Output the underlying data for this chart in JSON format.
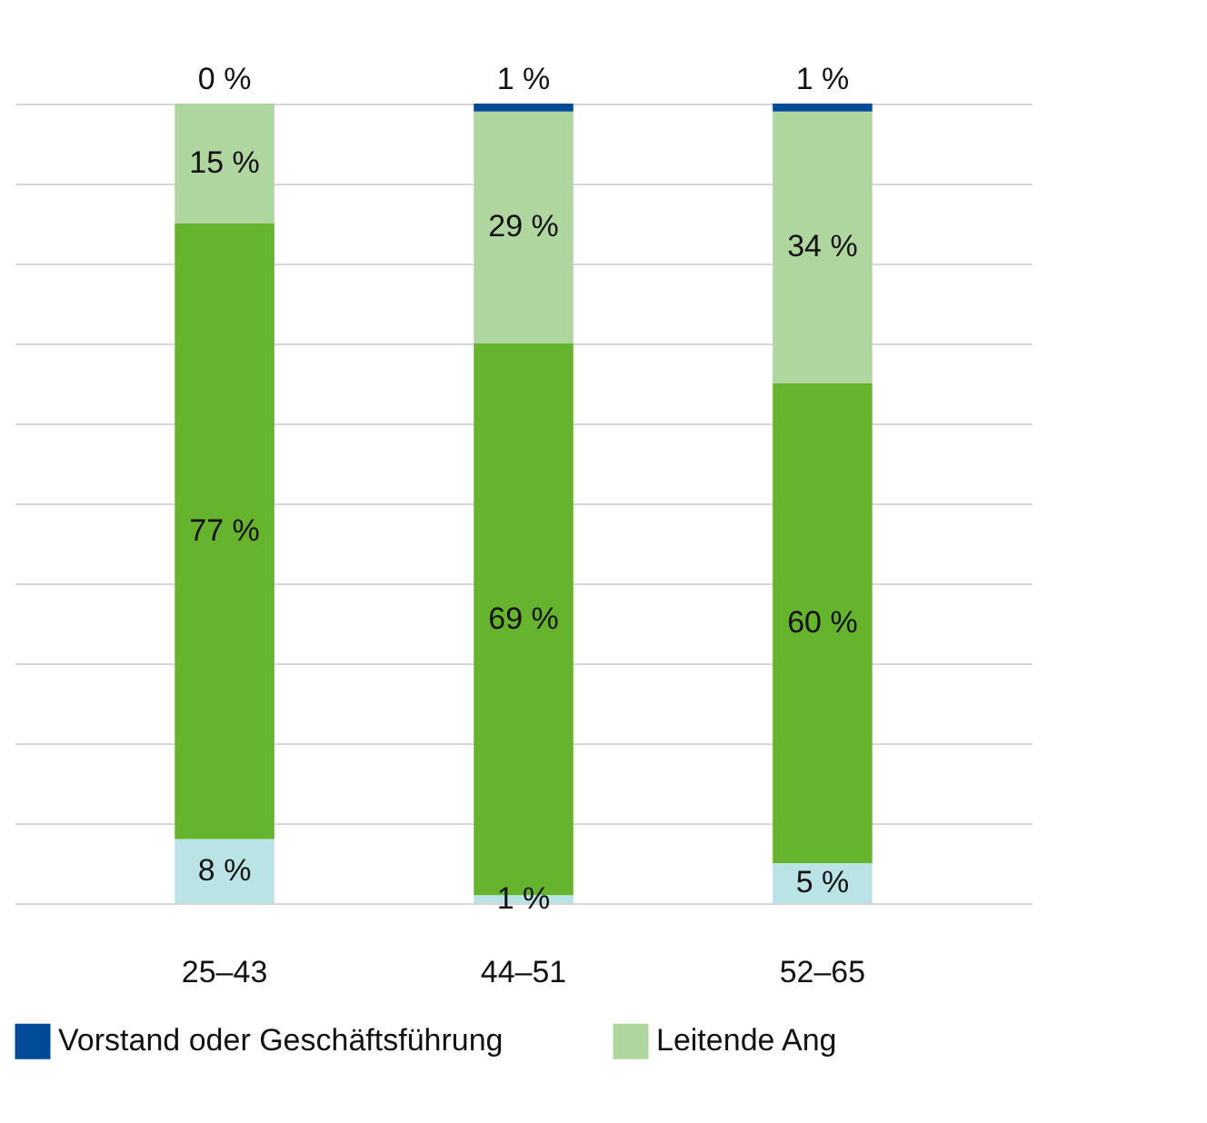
{
  "chart_data": {
    "type": "bar",
    "stacked": true,
    "categories": [
      "25–43",
      "44–51",
      "52–65"
    ],
    "series": [
      {
        "color": "#b9e3e5",
        "values": [
          8,
          1,
          5
        ],
        "value_labels": [
          "8 %",
          "1 %",
          "5 %"
        ]
      },
      {
        "color": "#66b32e",
        "values": [
          77,
          69,
          60
        ],
        "value_labels": [
          "77 %",
          "69 %",
          "60 %"
        ]
      },
      {
        "name": "Leitende Ang",
        "color": "#b0d6a0",
        "values": [
          15,
          29,
          34
        ],
        "value_labels": [
          "15 %",
          "29 %",
          "34 %"
        ]
      },
      {
        "name": "Vorstand oder Geschäftsführung",
        "color": "#004a98",
        "values": [
          0,
          1,
          1
        ],
        "value_labels": [
          "0 %",
          "1 %",
          "1 %"
        ]
      }
    ],
    "ylim": [
      0,
      100
    ],
    "yticks": [
      {
        "value": 0,
        "label": null
      },
      {
        "value": 10,
        "label": null
      },
      {
        "value": 20,
        "label": null
      },
      {
        "value": 30,
        "label": null
      },
      {
        "value": 40,
        "label": null
      },
      {
        "value": 50,
        "label": null
      },
      {
        "value": 60,
        "label": null
      },
      {
        "value": 70,
        "label": null
      },
      {
        "value": 80,
        "label": null
      },
      {
        "value": 90,
        "label": null
      },
      {
        "value": 100,
        "label": null
      }
    ],
    "tick_labels": "x",
    "grid": "y",
    "legend": "bottom"
  }
}
